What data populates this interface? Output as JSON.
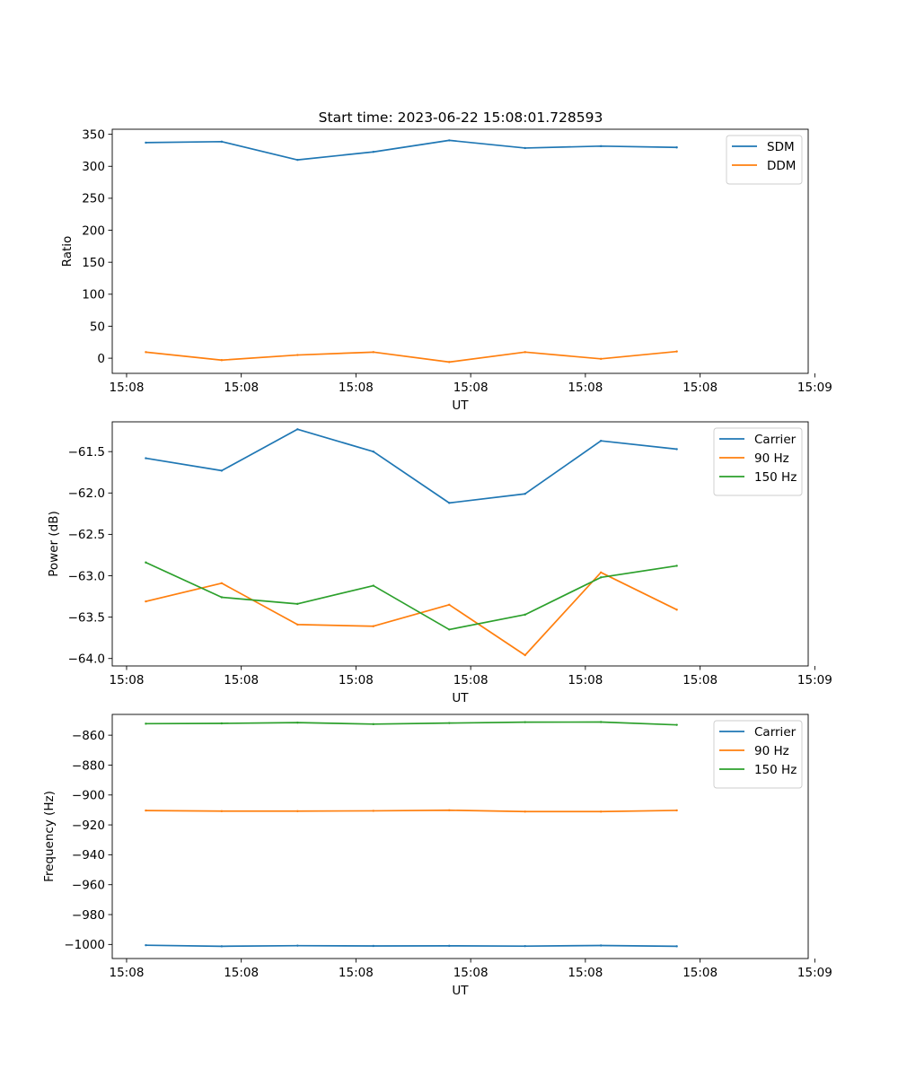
{
  "figure_title": "Start time: 2023-06-22 15:08:01.728593",
  "colors": {
    "blue": "#1f77b4",
    "orange": "#ff7f0e",
    "green": "#2ca02c"
  },
  "chart_data": [
    {
      "type": "line",
      "title": "Start time: 2023-06-22 15:08:01.728593",
      "xlabel": "UT",
      "ylabel": "Ratio",
      "x": [
        1,
        2,
        3,
        4,
        5,
        6,
        7,
        8
      ],
      "xlim": [
        0.557,
        9.733
      ],
      "x_ticks": [
        0.746,
        2.258,
        3.77,
        5.283,
        6.795,
        8.308,
        9.82
      ],
      "x_tick_labels": [
        "15:08",
        "15:08",
        "15:08",
        "15:08",
        "15:08",
        "15:08",
        "15:09"
      ],
      "ylim": [
        -23.7,
        357.9
      ],
      "y_ticks": [
        0,
        50,
        100,
        150,
        200,
        250,
        300,
        350
      ],
      "y_tick_labels": [
        "0",
        "50",
        "100",
        "150",
        "200",
        "250",
        "300",
        "350"
      ],
      "legend_position": "top-right",
      "series": [
        {
          "name": "SDM",
          "color": "#1f77b4",
          "values": [
            337,
            338.5,
            310,
            322.5,
            340.5,
            328.5,
            331.5,
            329.5
          ]
        },
        {
          "name": "DDM",
          "color": "#ff7f0e",
          "values": [
            9.5,
            -3,
            5,
            9.5,
            -6,
            9.5,
            -1,
            10.5
          ]
        }
      ]
    },
    {
      "type": "line",
      "title": "",
      "xlabel": "UT",
      "ylabel": "Power (dB)",
      "x": [
        1,
        2,
        3,
        4,
        5,
        6,
        7,
        8
      ],
      "xlim": [
        0.557,
        9.733
      ],
      "x_ticks": [
        0.746,
        2.258,
        3.77,
        5.283,
        6.795,
        8.308,
        9.82
      ],
      "x_tick_labels": [
        "15:08",
        "15:08",
        "15:08",
        "15:08",
        "15:08",
        "15:08",
        "15:09"
      ],
      "ylim": [
        -64.09,
        -61.14
      ],
      "y_ticks": [
        -64.0,
        -63.5,
        -63.0,
        -62.5,
        -62.0,
        -61.5
      ],
      "y_tick_labels": [
        "−64.0",
        "−63.5",
        "−63.0",
        "−62.5",
        "−62.0",
        "−61.5"
      ],
      "legend_position": "top-right",
      "series": [
        {
          "name": "Carrier",
          "color": "#1f77b4",
          "values": [
            -61.58,
            -61.73,
            -61.23,
            -61.5,
            -62.12,
            -62.01,
            -61.37,
            -61.47
          ]
        },
        {
          "name": "90 Hz",
          "color": "#ff7f0e",
          "values": [
            -63.31,
            -63.09,
            -63.59,
            -63.61,
            -63.35,
            -63.96,
            -62.96,
            -63.41
          ]
        },
        {
          "name": "150 Hz",
          "color": "#2ca02c",
          "values": [
            -62.84,
            -63.26,
            -63.34,
            -63.12,
            -63.65,
            -63.47,
            -63.02,
            -62.88
          ]
        }
      ]
    },
    {
      "type": "line",
      "title": "",
      "xlabel": "UT",
      "ylabel": "Frequency (Hz)",
      "x": [
        1,
        2,
        3,
        4,
        5,
        6,
        7,
        8
      ],
      "xlim": [
        0.557,
        9.733
      ],
      "x_ticks": [
        0.746,
        2.258,
        3.77,
        5.283,
        6.795,
        8.308,
        9.82
      ],
      "x_tick_labels": [
        "15:08",
        "15:08",
        "15:08",
        "15:08",
        "15:08",
        "15:08",
        "15:09"
      ],
      "ylim": [
        -1009.4,
        -846.1
      ],
      "y_ticks": [
        -1000,
        -980,
        -960,
        -940,
        -920,
        -900,
        -880,
        -860
      ],
      "y_tick_labels": [
        "−1000",
        "−980",
        "−960",
        "−940",
        "−920",
        "−900",
        "−880",
        "−860"
      ],
      "legend_position": "top-right",
      "series": [
        {
          "name": "Carrier",
          "color": "#1f77b4",
          "values": [
            -1000.5,
            -1001.2,
            -1000.8,
            -1001,
            -1000.9,
            -1001.1,
            -1000.7,
            -1001.2
          ]
        },
        {
          "name": "90 Hz",
          "color": "#ff7f0e",
          "values": [
            -910.4,
            -910.8,
            -910.8,
            -910.6,
            -910.2,
            -911.1,
            -911.1,
            -910.3
          ]
        },
        {
          "name": "150 Hz",
          "color": "#2ca02c",
          "values": [
            -852.3,
            -852.1,
            -851.6,
            -852.6,
            -851.9,
            -851.3,
            -851.2,
            -853.1
          ]
        }
      ]
    }
  ]
}
